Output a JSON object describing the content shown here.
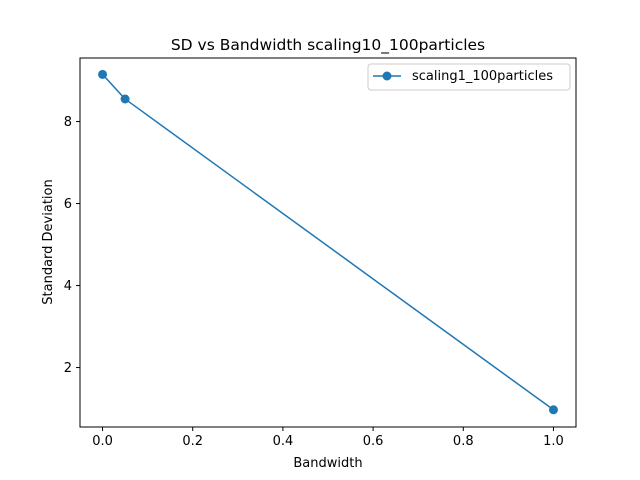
{
  "chart_data": {
    "type": "line",
    "title": "SD vs Bandwidth scaling10_100particles",
    "xlabel": "Bandwidth",
    "ylabel": "Standard Deviation",
    "xlim": [
      -0.05,
      1.05
    ],
    "ylim": [
      0.55,
      9.55
    ],
    "xticks": [
      0.0,
      0.2,
      0.4,
      0.6,
      0.8,
      1.0
    ],
    "xtick_labels": [
      "0.0",
      "0.2",
      "0.4",
      "0.6",
      "0.8",
      "1.0"
    ],
    "yticks": [
      2,
      4,
      6,
      8
    ],
    "ytick_labels": [
      "2",
      "4",
      "6",
      "8"
    ],
    "grid": false,
    "legend_position": "top-right",
    "series": [
      {
        "name": "scaling1_100particles",
        "color": "#1f77b4",
        "marker": "circle",
        "x": [
          0.0,
          0.05,
          1.0
        ],
        "y": [
          9.15,
          8.55,
          0.97
        ]
      }
    ]
  }
}
